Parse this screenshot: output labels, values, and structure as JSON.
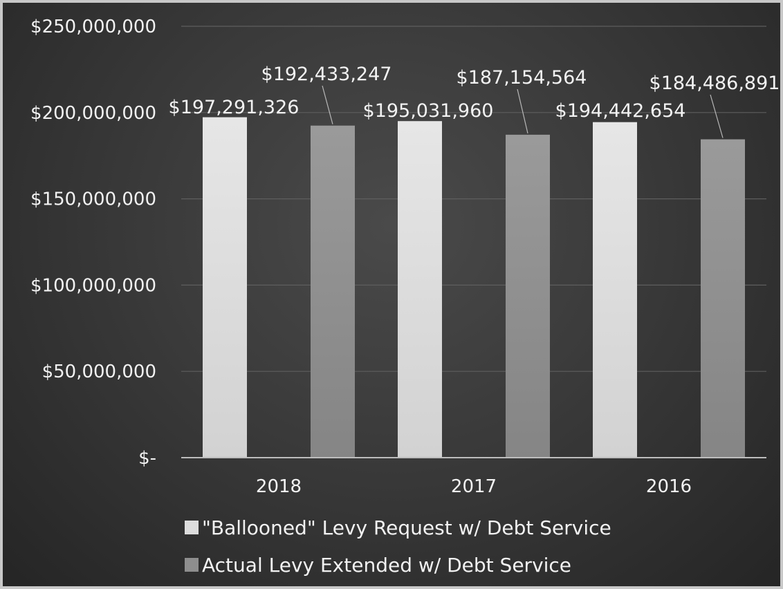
{
  "chart_data": {
    "type": "bar",
    "categories": [
      "2018",
      "2017",
      "2016"
    ],
    "series": [
      {
        "name": "\"Ballooned\" Levy Request w/ Debt Service",
        "values": [
          197291326,
          195031960,
          194442654
        ],
        "labels": [
          "$197,291,326",
          "$195,031,960",
          "$194,442,654"
        ],
        "color": "#dcdcdc"
      },
      {
        "name": "Actual Levy Extended w/ Debt Service",
        "values": [
          192433247,
          187154564,
          184486891
        ],
        "labels": [
          "$192,433,247",
          "$187,154,564",
          "$184,486,891"
        ],
        "color": "#8e8e8e"
      }
    ],
    "yticks": [
      0,
      50000000,
      100000000,
      150000000,
      200000000,
      250000000
    ],
    "ytick_labels": [
      "$-",
      "$50,000,000",
      "$100,000,000",
      "$150,000,000",
      "$200,000,000",
      "$250,000,000"
    ],
    "ylim": [
      0,
      250000000
    ],
    "grid": true,
    "legend_position": "bottom-left",
    "title": "",
    "xlabel": "",
    "ylabel": ""
  }
}
